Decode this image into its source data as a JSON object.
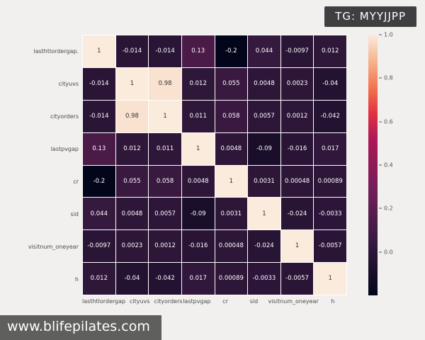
{
  "badge": {
    "label": "TG: MYYJJPP"
  },
  "watermark": {
    "text": "www.blifepilates.com"
  },
  "colors": {
    "background": "#f1f0ee",
    "badge_bg": "#3f3f41",
    "gridline": "#ffffff",
    "rocket_anchors": [
      [
        0.0,
        "#03051A"
      ],
      [
        0.2,
        "#35193E"
      ],
      [
        0.4,
        "#701F57"
      ],
      [
        0.6,
        "#AD1759"
      ],
      [
        0.7,
        "#E13342"
      ],
      [
        0.8,
        "#F37651"
      ],
      [
        0.9,
        "#F6B48F"
      ],
      [
        1.0,
        "#FAEBDD"
      ]
    ],
    "annot_dark_text": "#333333",
    "annot_light_text": "#ffffff"
  },
  "chart_data": {
    "type": "heatmap",
    "title": "",
    "colormap": "rocket",
    "vmin": -0.2,
    "vmax": 1.0,
    "x_labels": [
      "lasthtlordergap",
      "cityuvs",
      "cityorders",
      "lastpvgap",
      "cr",
      "sid",
      "visitnum_oneyear",
      "h"
    ],
    "y_labels": [
      "lasthtlordergap.",
      "cityuvs",
      "cityorders",
      "lastpvgap",
      "cr",
      "sid",
      "visitnum_oneyear",
      "h"
    ],
    "matrix": [
      [
        "1",
        "-0.014",
        "-0.014",
        "0.13",
        "-0.2",
        "0.044",
        "-0.0097",
        "0.012"
      ],
      [
        "-0.014",
        "1",
        "0.98",
        "0.012",
        "0.055",
        "0.0048",
        "0.0023",
        "-0.04"
      ],
      [
        "-0.014",
        "0.98",
        "1",
        "0.011",
        "0.058",
        "0.0057",
        "0.0012",
        "-0.042"
      ],
      [
        "0.13",
        "0.012",
        "0.011",
        "1",
        "0.0048",
        "-0.09",
        "-0.016",
        "0.017"
      ],
      [
        "-0.2",
        "0.055",
        "0.058",
        "0.0048",
        "1",
        "0.0031",
        "0.00048",
        "0.00089"
      ],
      [
        "0.044",
        "0.0048",
        "0.0057",
        "-0.09",
        "0.0031",
        "1",
        "-0.024",
        "-0.0033"
      ],
      [
        "-0.0097",
        "0.0023",
        "0.0012",
        "-0.016",
        "0.00048",
        "-0.024",
        "1",
        "-0.0057"
      ],
      [
        "0.012",
        "-0.04",
        "-0.042",
        "0.017",
        "0.00089",
        "-0.0033",
        "-0.0057",
        "1"
      ]
    ],
    "colorbar_ticks": [
      "1.0",
      "0.8",
      "0.6",
      "0.4",
      "0.2",
      "0.0"
    ],
    "legend_position": "right",
    "grid": true,
    "annotations": true
  }
}
